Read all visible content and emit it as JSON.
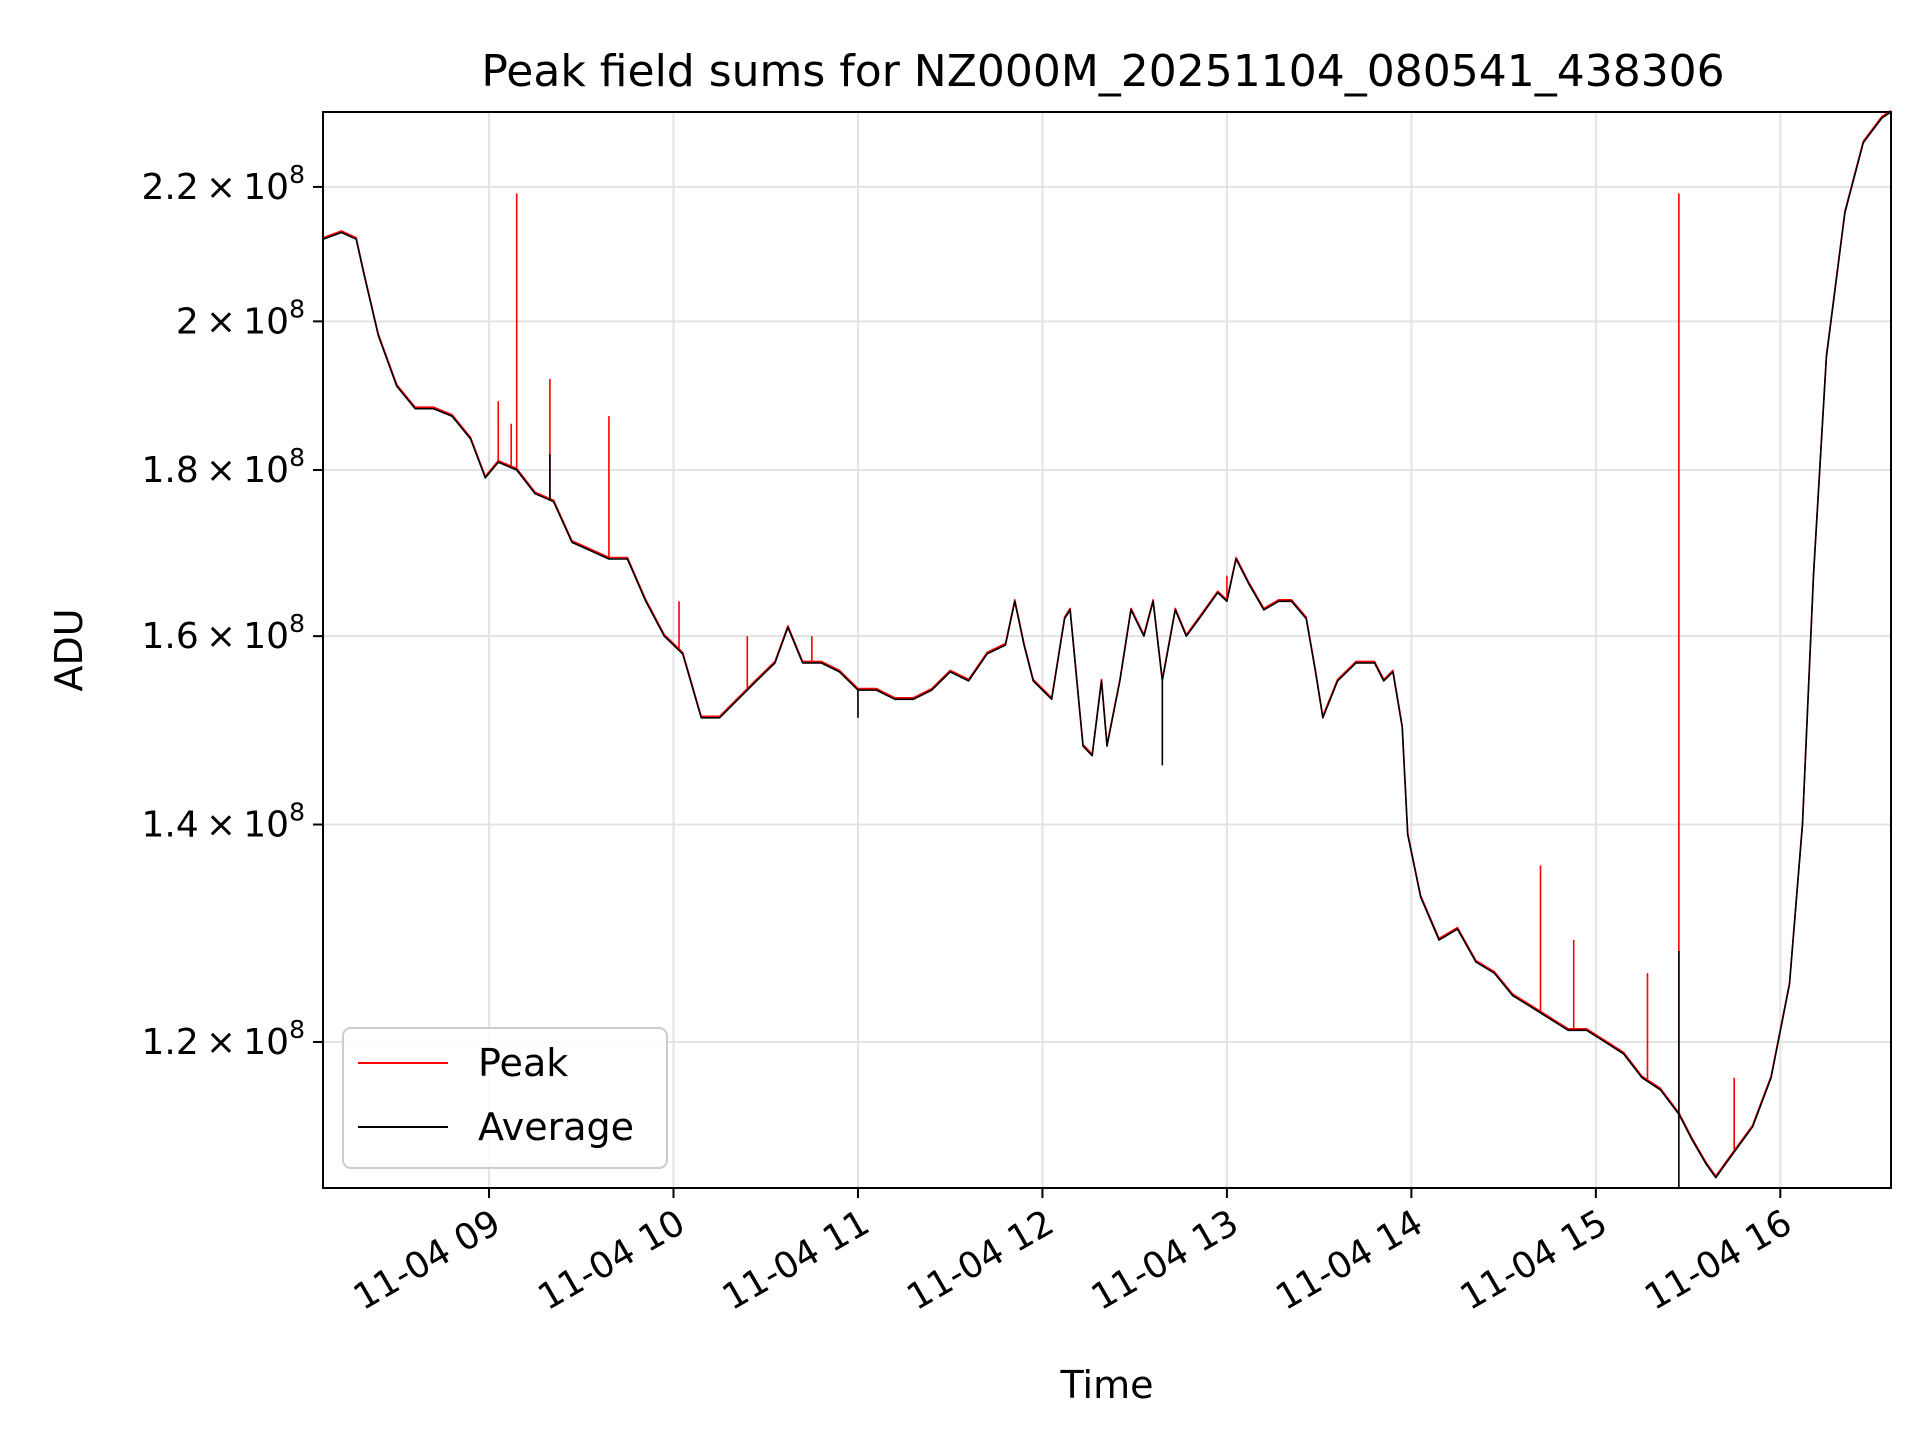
{
  "chart_data": {
    "type": "line",
    "title": "Peak field sums for NZ000M_20251104_080541_438306",
    "xlabel": "Time",
    "ylabel": "ADU",
    "yscale": "log",
    "xlim": [
      8.1,
      16.6
    ],
    "ylim": [
      108200000.0,
      232000000.0
    ],
    "grid": true,
    "legend_position": "lower-left",
    "x_ticks": [
      {
        "value": 9,
        "label": "11-04 09"
      },
      {
        "value": 10,
        "label": "11-04 10"
      },
      {
        "value": 11,
        "label": "11-04 11"
      },
      {
        "value": 12,
        "label": "11-04 12"
      },
      {
        "value": 13,
        "label": "11-04 13"
      },
      {
        "value": 14,
        "label": "11-04 14"
      },
      {
        "value": 15,
        "label": "11-04 15"
      },
      {
        "value": 16,
        "label": "11-04 16"
      }
    ],
    "y_ticks": [
      {
        "value": 120000000,
        "mantissa": "1.2",
        "exponent": "8"
      },
      {
        "value": 140000000,
        "mantissa": "1.4",
        "exponent": "8"
      },
      {
        "value": 160000000,
        "mantissa": "1.6",
        "exponent": "8"
      },
      {
        "value": 180000000,
        "mantissa": "1.8",
        "exponent": "8"
      },
      {
        "value": 200000000,
        "mantissa": "2",
        "exponent": "8"
      },
      {
        "value": 220000000,
        "mantissa": "2.2",
        "exponent": "8"
      }
    ],
    "series": [
      {
        "name": "Peak",
        "color": "#ff0000"
      },
      {
        "name": "Average",
        "color": "#000000"
      }
    ],
    "average_trace": [
      [
        8.1,
        212000000.0
      ],
      [
        8.2,
        213000000.0
      ],
      [
        8.28,
        212000000.0
      ],
      [
        8.32,
        207000000.0
      ],
      [
        8.4,
        198000000.0
      ],
      [
        8.5,
        191000000.0
      ],
      [
        8.6,
        188000000.0
      ],
      [
        8.7,
        188000000.0
      ],
      [
        8.8,
        187000000.0
      ],
      [
        8.9,
        184000000.0
      ],
      [
        8.98,
        179000000.0
      ],
      [
        9.05,
        181000000.0
      ],
      [
        9.15,
        180000000.0
      ],
      [
        9.25,
        177000000.0
      ],
      [
        9.35,
        176000000.0
      ],
      [
        9.45,
        171000000.0
      ],
      [
        9.55,
        170000000.0
      ],
      [
        9.65,
        169000000.0
      ],
      [
        9.75,
        169000000.0
      ],
      [
        9.85,
        164000000.0
      ],
      [
        9.95,
        160000000.0
      ],
      [
        10.05,
        158000000.0
      ],
      [
        10.15,
        151000000.0
      ],
      [
        10.25,
        151000000.0
      ],
      [
        10.35,
        153000000.0
      ],
      [
        10.45,
        155000000.0
      ],
      [
        10.55,
        157000000.0
      ],
      [
        10.62,
        161000000.0
      ],
      [
        10.7,
        157000000.0
      ],
      [
        10.8,
        157000000.0
      ],
      [
        10.9,
        156000000.0
      ],
      [
        11.0,
        154000000.0
      ],
      [
        11.1,
        154000000.0
      ],
      [
        11.2,
        153000000.0
      ],
      [
        11.3,
        153000000.0
      ],
      [
        11.4,
        154000000.0
      ],
      [
        11.5,
        156000000.0
      ],
      [
        11.6,
        155000000.0
      ],
      [
        11.7,
        158000000.0
      ],
      [
        11.8,
        159000000.0
      ],
      [
        11.85,
        164000000.0
      ],
      [
        11.9,
        159000000.0
      ],
      [
        11.95,
        155000000.0
      ],
      [
        12.05,
        153000000.0
      ],
      [
        12.12,
        162000000.0
      ],
      [
        12.15,
        163000000.0
      ],
      [
        12.22,
        148000000.0
      ],
      [
        12.27,
        147000000.0
      ],
      [
        12.32,
        155000000.0
      ],
      [
        12.35,
        148000000.0
      ],
      [
        12.42,
        155000000.0
      ],
      [
        12.48,
        163000000.0
      ],
      [
        12.55,
        160000000.0
      ],
      [
        12.6,
        164000000.0
      ],
      [
        12.65,
        155000000.0
      ],
      [
        12.72,
        163000000.0
      ],
      [
        12.78,
        160000000.0
      ],
      [
        12.85,
        162000000.0
      ],
      [
        12.95,
        165000000.0
      ],
      [
        13.0,
        164000000.0
      ],
      [
        13.05,
        169000000.0
      ],
      [
        13.12,
        166000000.0
      ],
      [
        13.2,
        163000000.0
      ],
      [
        13.28,
        164000000.0
      ],
      [
        13.35,
        164000000.0
      ],
      [
        13.43,
        162000000.0
      ],
      [
        13.48,
        156000000.0
      ],
      [
        13.52,
        151000000.0
      ],
      [
        13.6,
        155000000.0
      ],
      [
        13.7,
        157000000.0
      ],
      [
        13.8,
        157000000.0
      ],
      [
        13.85,
        155000000.0
      ],
      [
        13.9,
        156000000.0
      ],
      [
        13.95,
        150000000.0
      ],
      [
        13.98,
        139000000.0
      ],
      [
        14.05,
        133000000.0
      ],
      [
        14.15,
        129000000.0
      ],
      [
        14.25,
        130000000.0
      ],
      [
        14.35,
        127000000.0
      ],
      [
        14.45,
        126000000.0
      ],
      [
        14.55,
        124000000.0
      ],
      [
        14.65,
        123000000.0
      ],
      [
        14.75,
        122000000.0
      ],
      [
        14.85,
        121000000.0
      ],
      [
        14.95,
        121000000.0
      ],
      [
        15.05,
        120000000.0
      ],
      [
        15.15,
        119000000.0
      ],
      [
        15.25,
        117000000.0
      ],
      [
        15.35,
        116000000.0
      ],
      [
        15.45,
        114000000.0
      ],
      [
        15.52,
        112000000.0
      ],
      [
        15.6,
        110000000.0
      ],
      [
        15.65,
        109000000.0
      ],
      [
        15.7,
        110000000.0
      ],
      [
        15.75,
        111000000.0
      ],
      [
        15.85,
        113000000.0
      ],
      [
        15.95,
        117000000.0
      ],
      [
        16.05,
        125000000.0
      ],
      [
        16.12,
        140000000.0
      ],
      [
        16.18,
        167000000.0
      ],
      [
        16.25,
        195000000.0
      ],
      [
        16.35,
        216000000.0
      ],
      [
        16.45,
        227000000.0
      ],
      [
        16.55,
        231000000.0
      ],
      [
        16.6,
        232000000.0
      ]
    ],
    "peak_spikes": [
      {
        "x": 9.05,
        "y": 189000000.0
      },
      {
        "x": 9.12,
        "y": 186000000.0
      },
      {
        "x": 9.15,
        "y": 219000000.0
      },
      {
        "x": 9.33,
        "y": 192000000.0
      },
      {
        "x": 9.65,
        "y": 187000000.0
      },
      {
        "x": 10.03,
        "y": 164000000.0
      },
      {
        "x": 10.4,
        "y": 160000000.0
      },
      {
        "x": 10.75,
        "y": 160000000.0
      },
      {
        "x": 13.0,
        "y": 167000000.0
      },
      {
        "x": 14.7,
        "y": 136000000.0
      },
      {
        "x": 14.88,
        "y": 129000000.0
      },
      {
        "x": 15.28,
        "y": 126000000.0
      },
      {
        "x": 15.45,
        "y": 219000000.0
      },
      {
        "x": 15.75,
        "y": 117000000.0
      }
    ],
    "average_spikes": [
      {
        "x": 9.33,
        "y": 182000000.0
      },
      {
        "x": 11.0,
        "y": 151000000.0
      },
      {
        "x": 12.65,
        "y": 146000000.0
      },
      {
        "x": 15.45,
        "y": 128000000.0
      },
      {
        "x": 15.45,
        "y": 108200000.0
      }
    ]
  }
}
